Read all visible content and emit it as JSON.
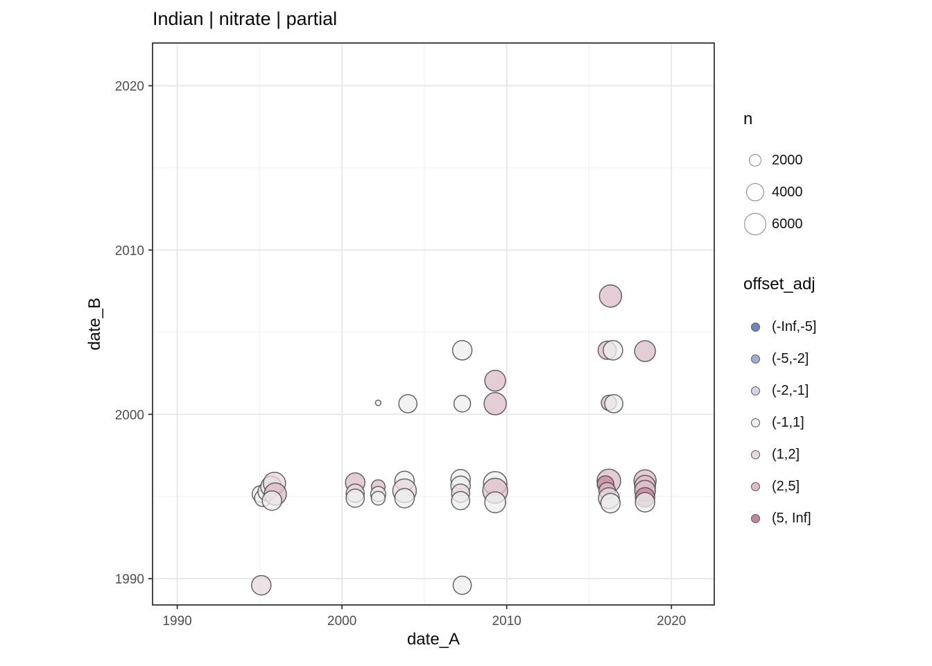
{
  "chart_data": {
    "type": "scatter",
    "title": "Indian | nitrate | partial",
    "xlabel": "date_A",
    "ylabel": "date_B",
    "xlim": [
      1988.5,
      2022.6
    ],
    "ylim": [
      1988.4,
      2022.6
    ],
    "x_major_ticks": [
      1990,
      2000,
      2010,
      2020
    ],
    "x_minor_ticks": [
      1995,
      2005,
      2015
    ],
    "y_major_ticks": [
      1990,
      2000,
      2010,
      2020
    ],
    "y_minor_ticks": [
      1995,
      2005,
      2015
    ],
    "grid": true,
    "legend_position": "right",
    "size_legend": {
      "title": "n",
      "values": [
        2000,
        4000,
        6000
      ]
    },
    "color_legend": {
      "title": "offset_adj",
      "bins": [
        {
          "label": "(-Inf,-5]",
          "color": "#6f86bd"
        },
        {
          "label": "(-5,-2]",
          "color": "#a6abd0"
        },
        {
          "label": "(-2,-1]",
          "color": "#d3d5e6"
        },
        {
          "label": "(-1,1]",
          "color": "#ededee"
        },
        {
          "label": "(1,2]",
          "color": "#e7d8de"
        },
        {
          "label": "(2,5]",
          "color": "#dcbcc9"
        },
        {
          "label": "(5, Inf]",
          "color": "#c2849f"
        }
      ]
    },
    "points": [
      {
        "x": 1995.05,
        "y": 1995.15,
        "n": 3400,
        "bin": "(-1,1]"
      },
      {
        "x": 1995.2,
        "y": 1994.9,
        "n": 3400,
        "bin": "(-1,1]"
      },
      {
        "x": 1995.45,
        "y": 1995.3,
        "n": 4000,
        "bin": "(-1,1]"
      },
      {
        "x": 1995.7,
        "y": 1995.6,
        "n": 5300,
        "bin": "(-1,1]"
      },
      {
        "x": 1995.9,
        "y": 1995.8,
        "n": 6000,
        "bin": "(1,2]"
      },
      {
        "x": 1995.95,
        "y": 1995.15,
        "n": 6000,
        "bin": "(2,5]"
      },
      {
        "x": 1995.75,
        "y": 1994.75,
        "n": 4600,
        "bin": "(-1,1]"
      },
      {
        "x": 1995.1,
        "y": 1989.6,
        "n": 4600,
        "bin": "(1,2]"
      },
      {
        "x": 2000.8,
        "y": 1995.85,
        "n": 4600,
        "bin": "(2,5]"
      },
      {
        "x": 2000.8,
        "y": 1995.2,
        "n": 4000,
        "bin": "(1,2]"
      },
      {
        "x": 2000.8,
        "y": 1994.9,
        "n": 4000,
        "bin": "(-1,1]"
      },
      {
        "x": 2002.2,
        "y": 1995.6,
        "n": 2300,
        "bin": "(2,5]"
      },
      {
        "x": 2002.2,
        "y": 1995.15,
        "n": 2800,
        "bin": "(-1,1]"
      },
      {
        "x": 2002.2,
        "y": 1994.9,
        "n": 2300,
        "bin": "(-1,1]"
      },
      {
        "x": 2002.2,
        "y": 2000.7,
        "n": 375,
        "bin": "(-1,1]"
      },
      {
        "x": 2004.0,
        "y": 2000.65,
        "n": 4000,
        "bin": "(-1,1]"
      },
      {
        "x": 2003.8,
        "y": 1995.95,
        "n": 4600,
        "bin": "(-1,1]"
      },
      {
        "x": 2003.8,
        "y": 1995.35,
        "n": 6800,
        "bin": "(1,2]"
      },
      {
        "x": 2003.8,
        "y": 1994.9,
        "n": 4600,
        "bin": "(-1,1]"
      },
      {
        "x": 2007.3,
        "y": 2003.9,
        "n": 4600,
        "bin": "(-1,1]"
      },
      {
        "x": 2007.3,
        "y": 2000.65,
        "n": 3400,
        "bin": "(-1,1]"
      },
      {
        "x": 2007.2,
        "y": 1996.05,
        "n": 4600,
        "bin": "(-1,1]"
      },
      {
        "x": 2007.2,
        "y": 1995.65,
        "n": 4600,
        "bin": "(-1,1]"
      },
      {
        "x": 2007.2,
        "y": 1995.2,
        "n": 4000,
        "bin": "(1,2]"
      },
      {
        "x": 2007.2,
        "y": 1994.75,
        "n": 4000,
        "bin": "(-1,1]"
      },
      {
        "x": 2007.3,
        "y": 1989.6,
        "n": 4000,
        "bin": "(-1,1]"
      },
      {
        "x": 2009.3,
        "y": 2002.05,
        "n": 5300,
        "bin": "(2,5]"
      },
      {
        "x": 2009.3,
        "y": 2000.65,
        "n": 6000,
        "bin": "(2,5]"
      },
      {
        "x": 2009.3,
        "y": 1995.8,
        "n": 6800,
        "bin": "(-1,1]"
      },
      {
        "x": 2009.3,
        "y": 1995.35,
        "n": 7600,
        "bin": "(2,5]"
      },
      {
        "x": 2009.3,
        "y": 1994.65,
        "n": 5300,
        "bin": "(-1,1]"
      },
      {
        "x": 2016.3,
        "y": 2007.2,
        "n": 6000,
        "bin": "(2,5]"
      },
      {
        "x": 2016.1,
        "y": 2003.9,
        "n": 4000,
        "bin": "(2,5]"
      },
      {
        "x": 2016.45,
        "y": 2003.9,
        "n": 4600,
        "bin": "(-1,1]"
      },
      {
        "x": 2016.2,
        "y": 2000.7,
        "n": 2800,
        "bin": "(2,5]"
      },
      {
        "x": 2016.5,
        "y": 2000.65,
        "n": 4000,
        "bin": "(-1,1]"
      },
      {
        "x": 2016.2,
        "y": 1995.95,
        "n": 6800,
        "bin": "(2,5]"
      },
      {
        "x": 2016.0,
        "y": 1995.75,
        "n": 3400,
        "bin": "(5, Inf]"
      },
      {
        "x": 2016.1,
        "y": 1995.35,
        "n": 3400,
        "bin": "(2,5]"
      },
      {
        "x": 2016.2,
        "y": 1994.9,
        "n": 5300,
        "bin": "(1,2]"
      },
      {
        "x": 2016.3,
        "y": 1994.6,
        "n": 4600,
        "bin": "(-1,1]"
      },
      {
        "x": 2018.4,
        "y": 2003.85,
        "n": 5300,
        "bin": "(2,5]"
      },
      {
        "x": 2018.4,
        "y": 1995.95,
        "n": 6000,
        "bin": "(2,5]"
      },
      {
        "x": 2018.4,
        "y": 1995.65,
        "n": 5300,
        "bin": "(2,5]"
      },
      {
        "x": 2018.4,
        "y": 1995.35,
        "n": 5300,
        "bin": "(2,5]"
      },
      {
        "x": 2018.4,
        "y": 1994.95,
        "n": 4600,
        "bin": "(5, Inf]"
      },
      {
        "x": 2018.4,
        "y": 1994.65,
        "n": 4600,
        "bin": "(-1,1]"
      }
    ]
  },
  "style": {
    "background": "#ffffff",
    "panel_border": "#333333",
    "grid_major": "#e6e6e6",
    "grid_minor": "#f0f0f0",
    "tick_color": "#333333",
    "tick_label_color": "#4d4d4d",
    "bubble_stroke": "#4a4a4a"
  }
}
